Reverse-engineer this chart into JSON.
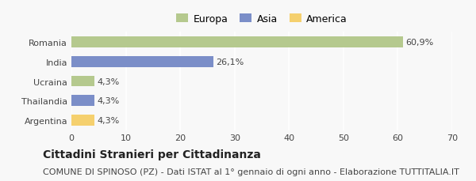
{
  "categories": [
    "Romania",
    "India",
    "Ucraina",
    "Thailandia",
    "Argentina"
  ],
  "values": [
    60.9,
    26.1,
    4.3,
    4.3,
    4.3
  ],
  "labels": [
    "60,9%",
    "26,1%",
    "4,3%",
    "4,3%",
    "4,3%"
  ],
  "bar_colors": [
    "#b5c98e",
    "#7b8ec8",
    "#b5c98e",
    "#7b8ec8",
    "#f5d06e"
  ],
  "legend_labels": [
    "Europa",
    "Asia",
    "America"
  ],
  "legend_colors": [
    "#b5c98e",
    "#7b8ec8",
    "#f5d06e"
  ],
  "xlim": [
    0,
    70
  ],
  "xticks": [
    0,
    10,
    20,
    30,
    40,
    50,
    60,
    70
  ],
  "title_bold": "Cittadini Stranieri per Cittadinanza",
  "subtitle": "COMUNE DI SPINOSO (PZ) - Dati ISTAT al 1° gennaio di ogni anno - Elaborazione TUTTITALIA.IT",
  "background_color": "#f8f8f8",
  "grid_color": "#ffffff",
  "title_fontsize": 10,
  "subtitle_fontsize": 8,
  "bar_label_fontsize": 8,
  "tick_fontsize": 8,
  "legend_fontsize": 9
}
